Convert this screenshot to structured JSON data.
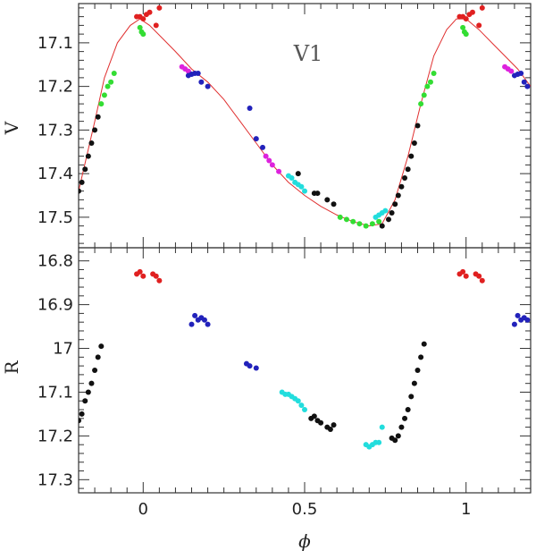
{
  "chart_data": [
    {
      "type": "scatter",
      "panel": "top",
      "title": "",
      "annotation": "V1",
      "xlabel": "",
      "ylabel": "V",
      "xlim": [
        -0.2,
        1.2
      ],
      "ylim": [
        17.57,
        17.01
      ],
      "y_inverted": true,
      "xticks": [
        "0",
        "0.5",
        "1"
      ],
      "yticks": [
        "17.1",
        "17.2",
        "17.3",
        "17.4",
        "17.5"
      ],
      "grid": false,
      "fit_curve": {
        "color": "#e03030",
        "x": [
          -0.2,
          -0.15,
          -0.12,
          -0.08,
          -0.04,
          -0.01,
          0.02,
          0.06,
          0.1,
          0.15,
          0.2,
          0.25,
          0.3,
          0.35,
          0.4,
          0.45,
          0.5,
          0.55,
          0.6,
          0.65,
          0.7,
          0.74,
          0.78,
          0.82,
          0.86,
          0.9,
          0.94,
          0.97,
          1.0,
          1.04,
          1.08,
          1.12,
          1.16,
          1.2
        ],
        "y": [
          17.44,
          17.28,
          17.18,
          17.1,
          17.06,
          17.045,
          17.06,
          17.09,
          17.12,
          17.16,
          17.19,
          17.23,
          17.28,
          17.33,
          17.38,
          17.42,
          17.45,
          17.475,
          17.495,
          17.51,
          17.52,
          17.515,
          17.46,
          17.36,
          17.24,
          17.13,
          17.07,
          17.045,
          17.045,
          17.07,
          17.1,
          17.13,
          17.16,
          17.2
        ]
      },
      "series": [
        {
          "color": "#e02020",
          "x": [
            -0.02,
            -0.01,
            0.0,
            0.01,
            0.02,
            0.04,
            0.05,
            0.98,
            0.99,
            1.0,
            1.01,
            1.02,
            1.04,
            1.05
          ],
          "y": [
            17.04,
            17.04,
            17.045,
            17.035,
            17.03,
            17.06,
            17.02,
            17.04,
            17.04,
            17.045,
            17.035,
            17.03,
            17.06,
            17.02
          ]
        },
        {
          "color": "#33dd33",
          "x": [
            -0.13,
            -0.12,
            -0.11,
            -0.1,
            -0.09,
            -0.01,
            -0.005,
            0.0,
            0.61,
            0.63,
            0.65,
            0.67,
            0.69,
            0.71,
            0.73,
            0.86,
            0.87,
            0.88,
            0.89,
            0.9,
            0.99,
            0.995,
            1.0
          ],
          "y": [
            17.24,
            17.22,
            17.2,
            17.19,
            17.17,
            17.065,
            17.075,
            17.08,
            17.5,
            17.505,
            17.51,
            17.515,
            17.52,
            17.515,
            17.51,
            17.24,
            17.22,
            17.2,
            17.19,
            17.17,
            17.065,
            17.075,
            17.08
          ]
        },
        {
          "color": "#111111",
          "x": [
            -0.2,
            -0.19,
            -0.18,
            -0.17,
            -0.16,
            -0.15,
            -0.14,
            0.48,
            0.53,
            0.54,
            0.57,
            0.59,
            0.74,
            0.76,
            0.77,
            0.78,
            0.79,
            0.8,
            0.81,
            0.82,
            0.83,
            0.84,
            0.85
          ],
          "y": [
            17.44,
            17.42,
            17.39,
            17.36,
            17.33,
            17.3,
            17.27,
            17.4,
            17.445,
            17.445,
            17.46,
            17.47,
            17.52,
            17.505,
            17.49,
            17.47,
            17.45,
            17.43,
            17.41,
            17.39,
            17.36,
            17.33,
            17.29
          ]
        },
        {
          "color": "#dd22dd",
          "x": [
            0.12,
            0.13,
            0.14,
            0.38,
            0.39,
            0.4,
            0.42,
            1.12,
            1.13,
            1.14
          ],
          "y": [
            17.155,
            17.16,
            17.165,
            17.36,
            17.37,
            17.38,
            17.395,
            17.155,
            17.16,
            17.165
          ]
        },
        {
          "color": "#2222bb",
          "x": [
            0.14,
            0.15,
            0.16,
            0.17,
            0.18,
            0.2,
            0.33,
            0.35,
            0.37,
            1.15,
            1.16,
            1.17,
            1.18,
            1.19
          ],
          "y": [
            17.175,
            17.172,
            17.17,
            17.17,
            17.19,
            17.2,
            17.25,
            17.32,
            17.34,
            17.175,
            17.172,
            17.17,
            17.19,
            17.2
          ]
        },
        {
          "color": "#22dddd",
          "x": [
            0.45,
            0.46,
            0.47,
            0.48,
            0.49,
            0.5,
            0.72,
            0.73,
            0.74,
            0.75
          ],
          "y": [
            17.405,
            17.41,
            17.42,
            17.425,
            17.43,
            17.44,
            17.5,
            17.495,
            17.49,
            17.485
          ]
        }
      ]
    },
    {
      "type": "scatter",
      "panel": "bottom",
      "title": "",
      "xlabel": "ϕ",
      "ylabel": "R",
      "xlim": [
        -0.2,
        1.2
      ],
      "ylim": [
        17.33,
        16.77
      ],
      "y_inverted": true,
      "xticks": [
        "0",
        "0.5",
        "1"
      ],
      "yticks": [
        "16.8",
        "16.9",
        "17",
        "17.1",
        "17.2",
        "17.3"
      ],
      "grid": false,
      "series": [
        {
          "color": "#e02020",
          "x": [
            -0.02,
            -0.01,
            0.0,
            0.03,
            0.04,
            0.05,
            0.98,
            0.99,
            1.0,
            1.03,
            1.04,
            1.05
          ],
          "y": [
            16.83,
            16.825,
            16.835,
            16.83,
            16.835,
            16.845,
            16.83,
            16.825,
            16.835,
            16.83,
            16.835,
            16.845
          ]
        },
        {
          "color": "#2222bb",
          "x": [
            0.15,
            0.16,
            0.17,
            0.18,
            0.19,
            0.2,
            0.32,
            0.33,
            0.35,
            1.15,
            1.16,
            1.17,
            1.18,
            1.19
          ],
          "y": [
            16.945,
            16.925,
            16.935,
            16.93,
            16.935,
            16.945,
            17.035,
            17.04,
            17.045,
            16.945,
            16.925,
            16.935,
            16.93,
            16.935
          ]
        },
        {
          "color": "#22dddd",
          "x": [
            0.43,
            0.44,
            0.45,
            0.46,
            0.47,
            0.48,
            0.49,
            0.5,
            0.69,
            0.7,
            0.71,
            0.72,
            0.73,
            0.74
          ],
          "y": [
            17.1,
            17.105,
            17.105,
            17.11,
            17.115,
            17.12,
            17.13,
            17.14,
            17.22,
            17.225,
            17.22,
            17.215,
            17.215,
            17.18
          ]
        },
        {
          "color": "#111111",
          "x": [
            -0.2,
            -0.19,
            -0.18,
            -0.17,
            -0.16,
            -0.15,
            -0.14,
            -0.13,
            0.52,
            0.53,
            0.54,
            0.55,
            0.57,
            0.58,
            0.59,
            0.77,
            0.78,
            0.79,
            0.8,
            0.81,
            0.82,
            0.83,
            0.84,
            0.85,
            0.86,
            0.87
          ],
          "y": [
            17.165,
            17.15,
            17.12,
            17.1,
            17.08,
            17.05,
            17.02,
            16.995,
            17.16,
            17.155,
            17.165,
            17.17,
            17.18,
            17.185,
            17.175,
            17.205,
            17.21,
            17.2,
            17.18,
            17.16,
            17.14,
            17.11,
            17.08,
            17.05,
            17.02,
            16.99
          ]
        }
      ]
    }
  ]
}
